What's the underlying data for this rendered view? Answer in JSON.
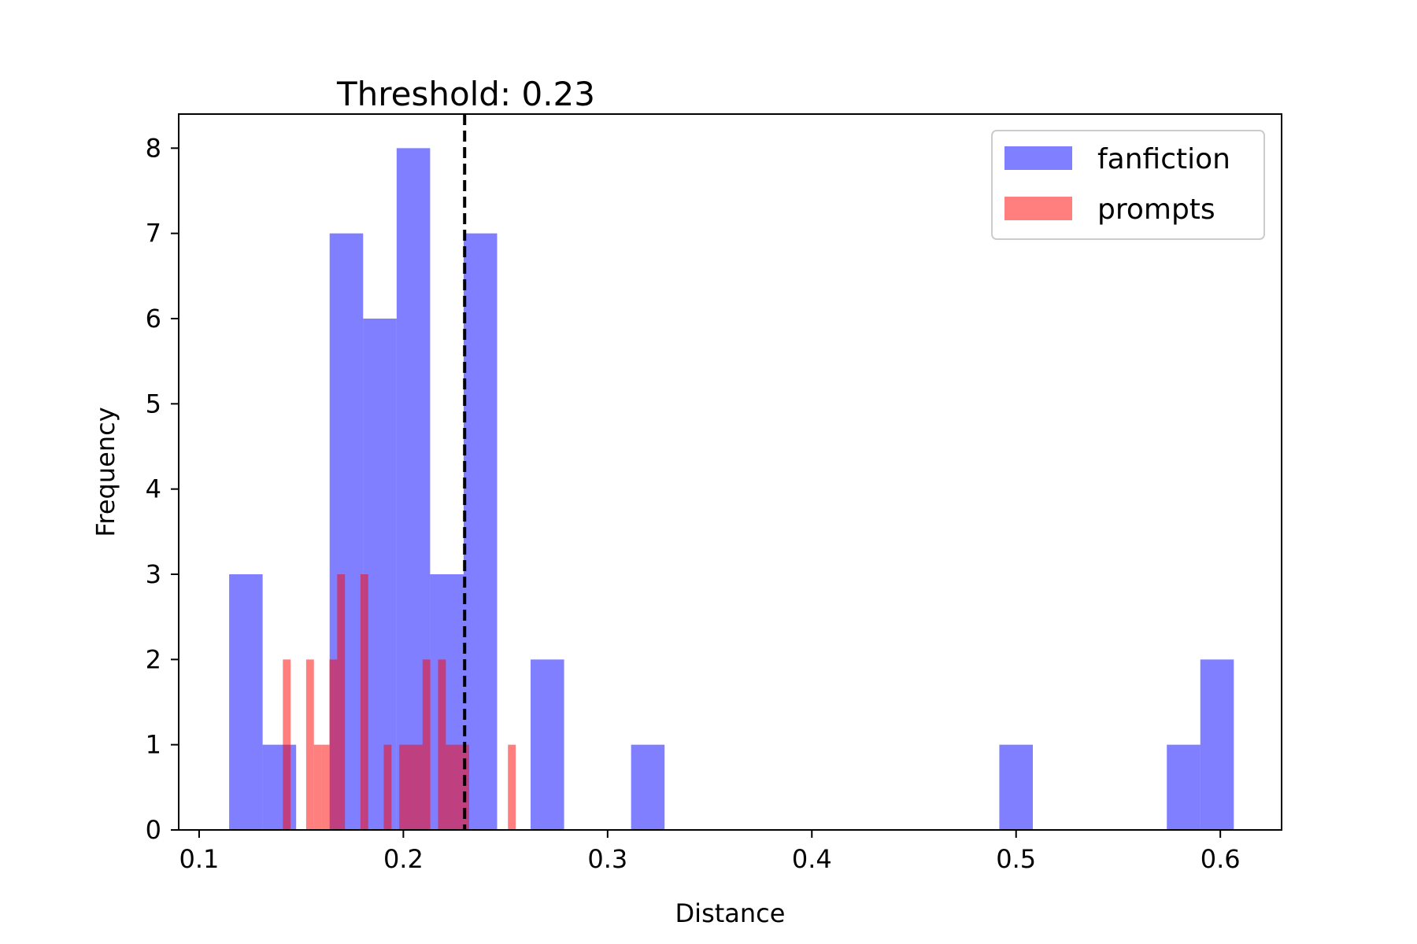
{
  "chart_data": {
    "type": "bar",
    "title": "Threshold: 0.23",
    "xlabel": "Distance",
    "ylabel": "Frequency",
    "xlim": [
      0.09,
      0.63
    ],
    "ylim": [
      0,
      8.4
    ],
    "xticks": [
      0.1,
      0.2,
      0.3,
      0.4,
      0.5,
      0.6
    ],
    "xtick_labels": [
      "0.1",
      "0.2",
      "0.3",
      "0.4",
      "0.5",
      "0.6"
    ],
    "yticks": [
      0,
      1,
      2,
      3,
      4,
      5,
      6,
      7,
      8
    ],
    "ytick_labels": [
      "0",
      "1",
      "2",
      "3",
      "4",
      "5",
      "6",
      "7",
      "8"
    ],
    "threshold": 0.23,
    "grid": false,
    "legend_position": "top-right",
    "series": [
      {
        "name": "fanfiction",
        "color": "#0000ff",
        "opacity": 0.5,
        "bins": [
          {
            "x0": 0.1147,
            "x1": 0.1311,
            "count": 3
          },
          {
            "x0": 0.1311,
            "x1": 0.1475,
            "count": 1
          },
          {
            "x0": 0.1475,
            "x1": 0.1639,
            "count": 0
          },
          {
            "x0": 0.1639,
            "x1": 0.1803,
            "count": 7
          },
          {
            "x0": 0.1803,
            "x1": 0.1967,
            "count": 6
          },
          {
            "x0": 0.1967,
            "x1": 0.2131,
            "count": 8
          },
          {
            "x0": 0.2131,
            "x1": 0.2295,
            "count": 3
          },
          {
            "x0": 0.2295,
            "x1": 0.2459,
            "count": 7
          },
          {
            "x0": 0.2459,
            "x1": 0.2623,
            "count": 0
          },
          {
            "x0": 0.2623,
            "x1": 0.2787,
            "count": 2
          },
          {
            "x0": 0.2787,
            "x1": 0.2951,
            "count": 0
          },
          {
            "x0": 0.2951,
            "x1": 0.3115,
            "count": 0
          },
          {
            "x0": 0.3115,
            "x1": 0.3279,
            "count": 1
          },
          {
            "x0": 0.4918,
            "x1": 0.5082,
            "count": 1
          },
          {
            "x0": 0.5738,
            "x1": 0.5902,
            "count": 1
          },
          {
            "x0": 0.5902,
            "x1": 0.6066,
            "count": 2
          }
        ]
      },
      {
        "name": "prompts",
        "color": "#ff0000",
        "opacity": 0.5,
        "bins": [
          {
            "x0": 0.141,
            "x1": 0.1448,
            "count": 2
          },
          {
            "x0": 0.1448,
            "x1": 0.1486,
            "count": 0
          },
          {
            "x0": 0.1524,
            "x1": 0.1562,
            "count": 2
          },
          {
            "x0": 0.1562,
            "x1": 0.16,
            "count": 1
          },
          {
            "x0": 0.16,
            "x1": 0.1638,
            "count": 1
          },
          {
            "x0": 0.1638,
            "x1": 0.1676,
            "count": 2
          },
          {
            "x0": 0.1676,
            "x1": 0.1714,
            "count": 3
          },
          {
            "x0": 0.179,
            "x1": 0.1828,
            "count": 3
          },
          {
            "x0": 0.1904,
            "x1": 0.1942,
            "count": 1
          },
          {
            "x0": 0.198,
            "x1": 0.2018,
            "count": 1
          },
          {
            "x0": 0.2018,
            "x1": 0.2056,
            "count": 1
          },
          {
            "x0": 0.2056,
            "x1": 0.2094,
            "count": 1
          },
          {
            "x0": 0.2094,
            "x1": 0.2132,
            "count": 2
          },
          {
            "x0": 0.217,
            "x1": 0.2208,
            "count": 2
          },
          {
            "x0": 0.2208,
            "x1": 0.2246,
            "count": 1
          },
          {
            "x0": 0.2246,
            "x1": 0.2284,
            "count": 1
          },
          {
            "x0": 0.2284,
            "x1": 0.2322,
            "count": 1
          },
          {
            "x0": 0.2512,
            "x1": 0.255,
            "count": 1
          }
        ]
      }
    ]
  }
}
